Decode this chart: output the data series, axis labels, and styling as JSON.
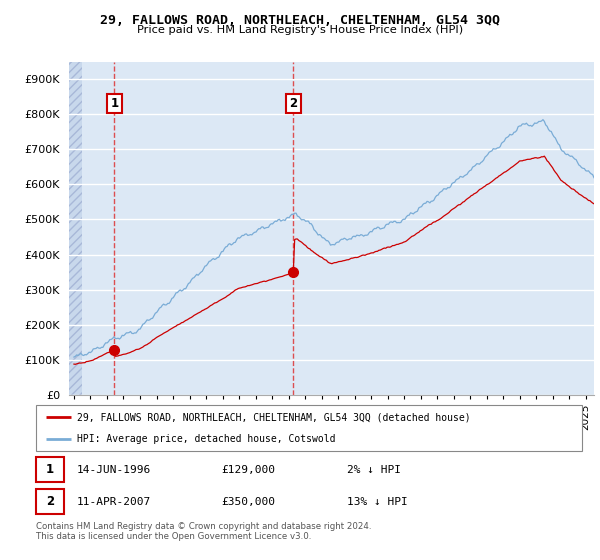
{
  "title": "29, FALLOWS ROAD, NORTHLEACH, CHELTENHAM, GL54 3QQ",
  "subtitle": "Price paid vs. HM Land Registry's House Price Index (HPI)",
  "ylim": [
    0,
    950000
  ],
  "yticks": [
    0,
    100000,
    200000,
    300000,
    400000,
    500000,
    600000,
    700000,
    800000,
    900000
  ],
  "ytick_labels": [
    "£0",
    "£100K",
    "£200K",
    "£300K",
    "£400K",
    "£500K",
    "£600K",
    "£700K",
    "£800K",
    "£900K"
  ],
  "sale1_date": 1996.45,
  "sale1_price": 129000,
  "sale2_date": 2007.28,
  "sale2_price": 350000,
  "background_color": "#dce8f5",
  "red_line_color": "#cc0000",
  "blue_line_color": "#7aacd6",
  "dashed_line_color": "#dd3333",
  "legend_label_red": "29, FALLOWS ROAD, NORTHLEACH, CHELTENHAM, GL54 3QQ (detached house)",
  "legend_label_blue": "HPI: Average price, detached house, Cotswold",
  "footer": "Contains HM Land Registry data © Crown copyright and database right 2024.\nThis data is licensed under the Open Government Licence v3.0.",
  "xmin": 1993.7,
  "xmax": 2025.5
}
